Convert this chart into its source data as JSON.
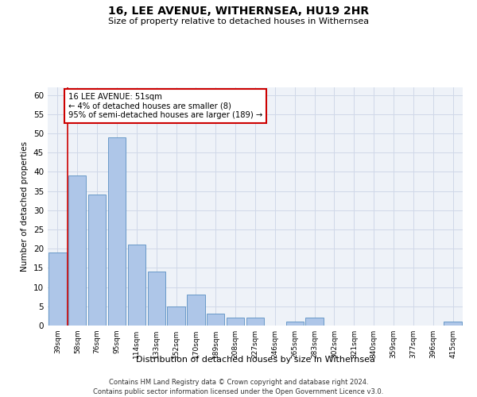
{
  "title": "16, LEE AVENUE, WITHERNSEA, HU19 2HR",
  "subtitle": "Size of property relative to detached houses in Withernsea",
  "xlabel": "Distribution of detached houses by size in Withernsea",
  "ylabel": "Number of detached properties",
  "categories": [
    "39sqm",
    "58sqm",
    "76sqm",
    "95sqm",
    "114sqm",
    "133sqm",
    "152sqm",
    "170sqm",
    "189sqm",
    "208sqm",
    "227sqm",
    "246sqm",
    "265sqm",
    "283sqm",
    "302sqm",
    "321sqm",
    "340sqm",
    "359sqm",
    "377sqm",
    "396sqm",
    "415sqm"
  ],
  "values": [
    19,
    39,
    34,
    49,
    21,
    14,
    5,
    8,
    3,
    2,
    2,
    0,
    1,
    2,
    0,
    0,
    0,
    0,
    0,
    0,
    1
  ],
  "bar_color": "#aec6e8",
  "bar_edge_color": "#5a8fc2",
  "highlight_line_color": "#cc0000",
  "annotation_text": "16 LEE AVENUE: 51sqm\n← 4% of detached houses are smaller (8)\n95% of semi-detached houses are larger (189) →",
  "annotation_box_color": "#ffffff",
  "annotation_box_edge": "#cc0000",
  "ylim": [
    0,
    62
  ],
  "yticks": [
    0,
    5,
    10,
    15,
    20,
    25,
    30,
    35,
    40,
    45,
    50,
    55,
    60
  ],
  "grid_color": "#d0d8e8",
  "bg_color": "#eef2f8",
  "footer_line1": "Contains HM Land Registry data © Crown copyright and database right 2024.",
  "footer_line2": "Contains public sector information licensed under the Open Government Licence v3.0."
}
